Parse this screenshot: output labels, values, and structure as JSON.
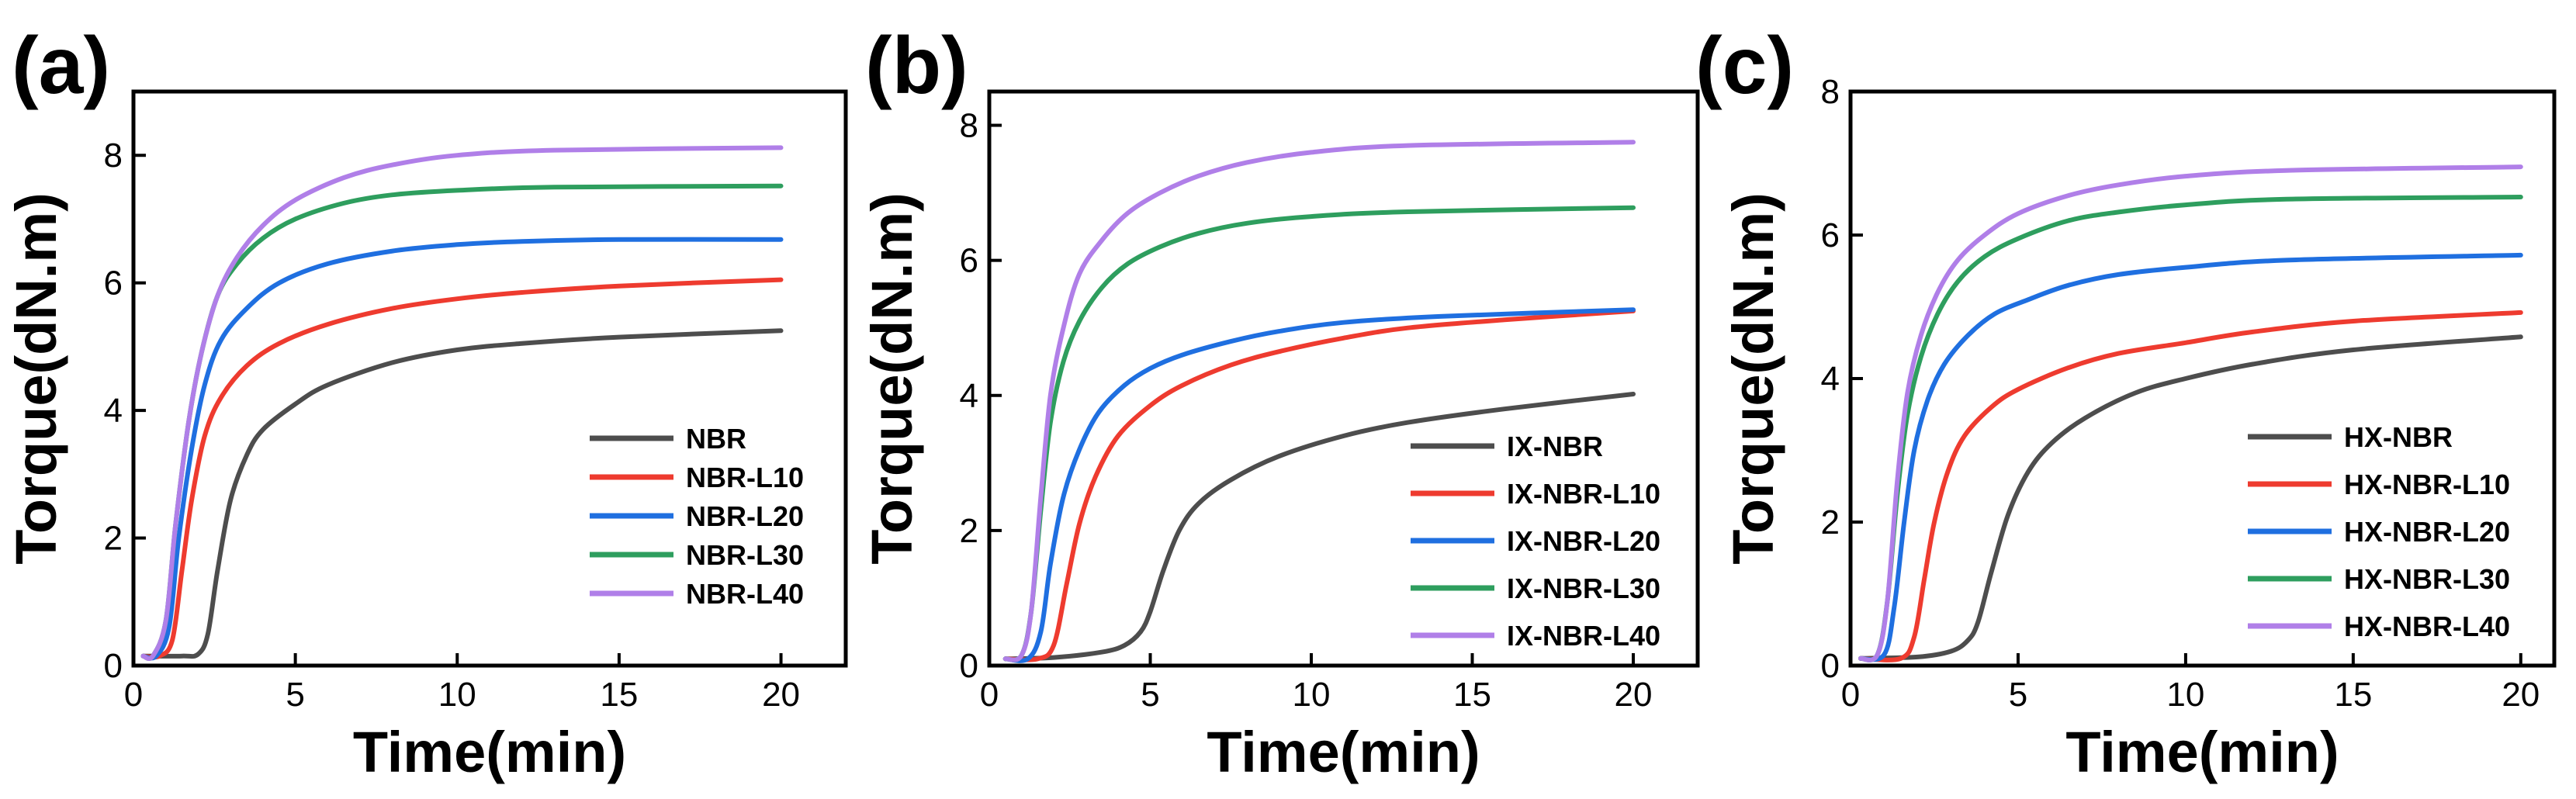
{
  "chart_data": [
    {
      "panel_label": "(a)",
      "type": "line",
      "xlabel": "Time(min)",
      "ylabel": "Torque(dN.m)",
      "xlim": [
        0,
        22
      ],
      "ylim": [
        0,
        9
      ],
      "xticks": [
        0,
        5,
        10,
        15,
        20
      ],
      "yticks": [
        0,
        2,
        4,
        6,
        8
      ],
      "legend_position": "bottom-right",
      "series": [
        {
          "name": "NBR",
          "color": "#4d4d4d",
          "x": [
            0.3,
            1.5,
            2.0,
            2.3,
            2.6,
            3.0,
            3.5,
            4.0,
            5.0,
            6.0,
            8.0,
            10.0,
            12.0,
            15.0,
            20.0
          ],
          "y": [
            0.15,
            0.15,
            0.18,
            0.5,
            1.5,
            2.6,
            3.3,
            3.7,
            4.1,
            4.4,
            4.75,
            4.95,
            5.05,
            5.15,
            5.25
          ]
        },
        {
          "name": "NBR-L10",
          "color": "#ee3b2f",
          "x": [
            0.3,
            0.8,
            1.2,
            1.5,
            1.8,
            2.2,
            2.7,
            3.5,
            4.5,
            6.0,
            8.0,
            10.0,
            12.0,
            15.0,
            20.0
          ],
          "y": [
            0.15,
            0.15,
            0.4,
            1.5,
            2.6,
            3.6,
            4.2,
            4.7,
            5.05,
            5.35,
            5.6,
            5.75,
            5.85,
            5.95,
            6.05
          ]
        },
        {
          "name": "NBR-L20",
          "color": "#1f6fe0",
          "x": [
            0.3,
            0.7,
            1.1,
            1.4,
            1.8,
            2.2,
            2.7,
            3.5,
            4.5,
            6.0,
            8.0,
            10.0,
            12.0,
            15.0,
            20.0
          ],
          "y": [
            0.15,
            0.15,
            0.6,
            2.0,
            3.4,
            4.4,
            5.1,
            5.6,
            6.0,
            6.3,
            6.5,
            6.6,
            6.65,
            6.68,
            6.68
          ]
        },
        {
          "name": "NBR-L30",
          "color": "#2e9e5e",
          "x": [
            0.3,
            0.6,
            1.0,
            1.3,
            1.7,
            2.1,
            2.6,
            3.2,
            4.0,
            5.0,
            6.5,
            8.0,
            10.0,
            13.0,
            20.0
          ],
          "y": [
            0.15,
            0.15,
            0.7,
            2.2,
            3.8,
            4.9,
            5.8,
            6.3,
            6.7,
            7.0,
            7.25,
            7.38,
            7.45,
            7.5,
            7.52
          ]
        },
        {
          "name": "NBR-L40",
          "color": "#b07fe8",
          "x": [
            0.3,
            0.6,
            1.0,
            1.3,
            1.7,
            2.1,
            2.6,
            3.2,
            4.0,
            5.0,
            6.5,
            8.0,
            10.0,
            13.0,
            20.0
          ],
          "y": [
            0.15,
            0.15,
            0.7,
            2.2,
            3.8,
            4.9,
            5.8,
            6.4,
            6.9,
            7.3,
            7.65,
            7.85,
            8.0,
            8.08,
            8.12
          ]
        }
      ]
    },
    {
      "panel_label": "(b)",
      "type": "line",
      "xlabel": "Time(min)",
      "ylabel": "Torque(dN.m)",
      "xlim": [
        0,
        22
      ],
      "ylim": [
        0,
        8.5
      ],
      "xticks": [
        0,
        5,
        10,
        15,
        20
      ],
      "yticks": [
        0,
        2,
        4,
        6,
        8
      ],
      "legend_position": "bottom-right",
      "series": [
        {
          "name": "IX-NBR",
          "color": "#4d4d4d",
          "x": [
            0.5,
            2.0,
            3.5,
            4.2,
            4.7,
            5.0,
            5.4,
            5.9,
            6.5,
            7.5,
            9.0,
            11.0,
            13.0,
            16.0,
            20.0
          ],
          "y": [
            0.1,
            0.12,
            0.2,
            0.3,
            0.5,
            0.8,
            1.4,
            2.0,
            2.4,
            2.75,
            3.1,
            3.4,
            3.6,
            3.8,
            4.02
          ]
        },
        {
          "name": "IX-NBR-L10",
          "color": "#ee3b2f",
          "x": [
            0.5,
            1.5,
            2.0,
            2.4,
            2.8,
            3.3,
            4.0,
            5.0,
            6.0,
            7.5,
            9.0,
            11.0,
            13.0,
            16.0,
            20.0
          ],
          "y": [
            0.1,
            0.1,
            0.3,
            1.2,
            2.1,
            2.8,
            3.4,
            3.85,
            4.15,
            4.45,
            4.65,
            4.85,
            5.0,
            5.12,
            5.25
          ]
        },
        {
          "name": "IX-NBR-L20",
          "color": "#1f6fe0",
          "x": [
            0.5,
            1.2,
            1.6,
            1.9,
            2.3,
            2.8,
            3.4,
            4.2,
            5.0,
            6.0,
            7.5,
            9.0,
            11.0,
            14.0,
            20.0
          ],
          "y": [
            0.1,
            0.1,
            0.5,
            1.5,
            2.5,
            3.2,
            3.75,
            4.15,
            4.4,
            4.6,
            4.8,
            4.95,
            5.08,
            5.17,
            5.27
          ]
        },
        {
          "name": "IX-NBR-L30",
          "color": "#2e9e5e",
          "x": [
            0.5,
            1.0,
            1.3,
            1.6,
            1.9,
            2.3,
            2.8,
            3.5,
            4.3,
            5.3,
            6.5,
            8.0,
            10.0,
            13.0,
            20.0
          ],
          "y": [
            0.1,
            0.15,
            0.8,
            2.3,
            3.6,
            4.5,
            5.1,
            5.6,
            5.95,
            6.2,
            6.4,
            6.55,
            6.65,
            6.72,
            6.78
          ]
        },
        {
          "name": "IX-NBR-L40",
          "color": "#b07fe8",
          "x": [
            0.5,
            1.0,
            1.3,
            1.6,
            1.9,
            2.3,
            2.8,
            3.5,
            4.3,
            5.3,
            6.5,
            8.0,
            10.0,
            13.0,
            20.0
          ],
          "y": [
            0.1,
            0.15,
            0.8,
            2.5,
            4.0,
            5.0,
            5.8,
            6.3,
            6.7,
            7.0,
            7.25,
            7.45,
            7.6,
            7.7,
            7.75
          ]
        }
      ]
    },
    {
      "panel_label": "(c)",
      "type": "line",
      "xlabel": "Time(min)",
      "ylabel": "Torque(dN.m)",
      "xlim": [
        0,
        21
      ],
      "ylim": [
        0,
        8
      ],
      "xticks": [
        0,
        5,
        10,
        15,
        20
      ],
      "yticks": [
        0,
        2,
        4,
        6,
        8
      ],
      "legend_position": "bottom-right",
      "series": [
        {
          "name": "HX-NBR",
          "color": "#4d4d4d",
          "x": [
            0.3,
            2.0,
            3.0,
            3.5,
            3.8,
            4.2,
            4.7,
            5.3,
            6.0,
            7.0,
            8.5,
            10.0,
            12.0,
            15.0,
            20.0
          ],
          "y": [
            0.1,
            0.12,
            0.2,
            0.35,
            0.6,
            1.3,
            2.1,
            2.7,
            3.1,
            3.45,
            3.8,
            4.0,
            4.2,
            4.4,
            4.58
          ]
        },
        {
          "name": "HX-NBR-L10",
          "color": "#ee3b2f",
          "x": [
            0.3,
            1.5,
            1.9,
            2.2,
            2.5,
            2.9,
            3.4,
            4.2,
            5.0,
            6.5,
            8.0,
            10.0,
            12.0,
            15.0,
            20.0
          ],
          "y": [
            0.1,
            0.1,
            0.4,
            1.2,
            2.0,
            2.7,
            3.2,
            3.6,
            3.85,
            4.15,
            4.35,
            4.5,
            4.65,
            4.8,
            4.92
          ]
        },
        {
          "name": "HX-NBR-L20",
          "color": "#1f6fe0",
          "x": [
            0.3,
            1.0,
            1.3,
            1.6,
            1.9,
            2.3,
            2.8,
            3.5,
            4.3,
            5.3,
            6.5,
            8.0,
            10.0,
            13.0,
            20.0
          ],
          "y": [
            0.1,
            0.15,
            0.8,
            2.0,
            3.0,
            3.7,
            4.2,
            4.6,
            4.9,
            5.1,
            5.3,
            5.45,
            5.55,
            5.65,
            5.72
          ]
        },
        {
          "name": "HX-NBR-L30",
          "color": "#2e9e5e",
          "x": [
            0.3,
            0.8,
            1.1,
            1.4,
            1.7,
            2.1,
            2.6,
            3.2,
            4.0,
            5.0,
            6.5,
            8.0,
            10.0,
            13.0,
            20.0
          ],
          "y": [
            0.1,
            0.15,
            0.9,
            2.4,
            3.5,
            4.3,
            4.9,
            5.35,
            5.7,
            5.95,
            6.2,
            6.32,
            6.42,
            6.5,
            6.53
          ]
        },
        {
          "name": "HX-NBR-L40",
          "color": "#b07fe8",
          "x": [
            0.3,
            0.8,
            1.1,
            1.4,
            1.7,
            2.1,
            2.6,
            3.2,
            4.0,
            5.0,
            6.5,
            8.0,
            10.0,
            13.0,
            20.0
          ],
          "y": [
            0.1,
            0.15,
            0.9,
            2.6,
            3.8,
            4.6,
            5.2,
            5.65,
            6.0,
            6.3,
            6.55,
            6.7,
            6.82,
            6.9,
            6.95
          ]
        }
      ]
    }
  ]
}
